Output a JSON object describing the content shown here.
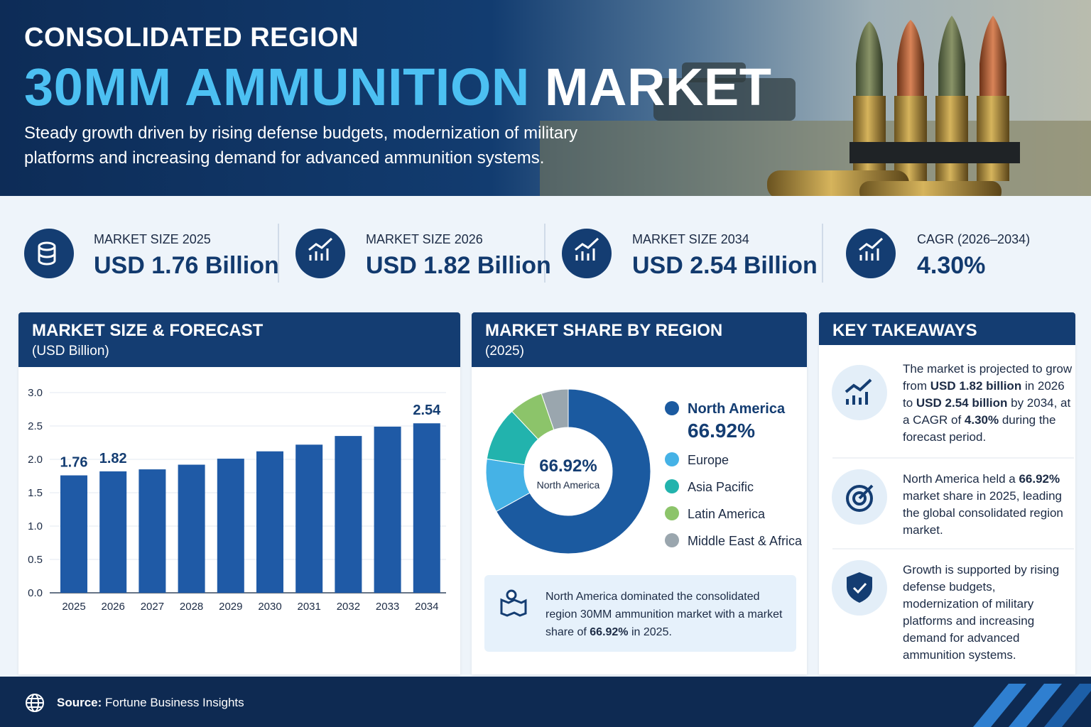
{
  "header": {
    "kicker": "CONSOLIDATED REGION",
    "title_highlight": "30MM AMMUNITION",
    "title_rest": "MARKET",
    "subtitle": "Steady growth driven by rising defense budgets, modernization of military platforms and increasing demand for advanced ammunition systems."
  },
  "stats": [
    {
      "label": "MARKET SIZE 2025",
      "value": "USD 1.76 Billion"
    },
    {
      "label": "MARKET SIZE 2026",
      "value": "USD 1.82 Billion"
    },
    {
      "label": "MARKET SIZE 2034",
      "value": "USD 2.54 Billion"
    },
    {
      "label": "CAGR (2026–2034)",
      "value": "4.30%"
    }
  ],
  "chart_data": [
    {
      "type": "bar",
      "title": "MARKET SIZE & FORECAST",
      "subtitle": "(USD Billion)",
      "categories": [
        "2025",
        "2026",
        "2027",
        "2028",
        "2029",
        "2030",
        "2031",
        "2032",
        "2033",
        "2034"
      ],
      "values": [
        1.76,
        1.82,
        1.85,
        1.92,
        2.01,
        2.12,
        2.22,
        2.35,
        2.49,
        2.54
      ],
      "value_labels": [
        "1.76",
        "1.82",
        null,
        null,
        null,
        null,
        null,
        null,
        null,
        "2.54"
      ],
      "color": "#1f5aa6",
      "ylim": [
        0,
        3
      ],
      "yticks": [
        {
          "value": 0,
          "label": "0.0"
        },
        0.5,
        {
          "value": 1,
          "label": "1.0"
        },
        1.5,
        {
          "value": 2,
          "label": "2.0"
        },
        2.5,
        {
          "value": 3,
          "label": "3.0"
        }
      ],
      "grid": true
    },
    {
      "type": "pie",
      "title": "MARKET SHARE BY REGION",
      "subtitle": "(2025)",
      "categories": [
        "North America",
        "Europe",
        "Asia Pacific",
        "Latin America",
        "Middle East & Africa"
      ],
      "values": [
        66.92,
        10.5,
        10.6,
        6.7,
        5.28
      ],
      "value_labels": [
        "66.92%",
        null,
        null,
        null,
        null
      ],
      "colors": [
        "#1b5aa0",
        "#45b2e6",
        "#22b3ad",
        "#8cc46a",
        "#9aa6ae"
      ],
      "donut": true
    }
  ],
  "note": {
    "parts": [
      {
        "text": "North America dominated the consolidated region 30MM ammunition market with a market share of "
      },
      {
        "text": "66.92%",
        "bold": true
      },
      {
        "text": " in 2025."
      }
    ]
  },
  "takeaways": {
    "title": "KEY TAKEAWAYS",
    "items": [
      {
        "parts": [
          {
            "text": "The market is projected to grow from "
          },
          {
            "text": "USD 1.82 billion",
            "bold": true
          },
          {
            "text": " in 2026 to "
          },
          {
            "text": "USD 2.54 billion",
            "bold": true
          },
          {
            "text": " by 2034, at a CAGR of "
          },
          {
            "text": "4.30%",
            "bold": true
          },
          {
            "text": " during the forecast period."
          }
        ]
      },
      {
        "parts": [
          {
            "text": "North America held a "
          },
          {
            "text": "66.92%",
            "bold": true
          },
          {
            "text": " market share in 2025, leading the global consolidated region market."
          }
        ]
      },
      {
        "parts": [
          {
            "text": "Growth is supported by rising defense budgets, modernization of military platforms and increasing demand for advanced ammunition systems."
          }
        ]
      }
    ]
  },
  "footer": {
    "source_label": "Source:",
    "source": "Fortune Business Insights"
  }
}
